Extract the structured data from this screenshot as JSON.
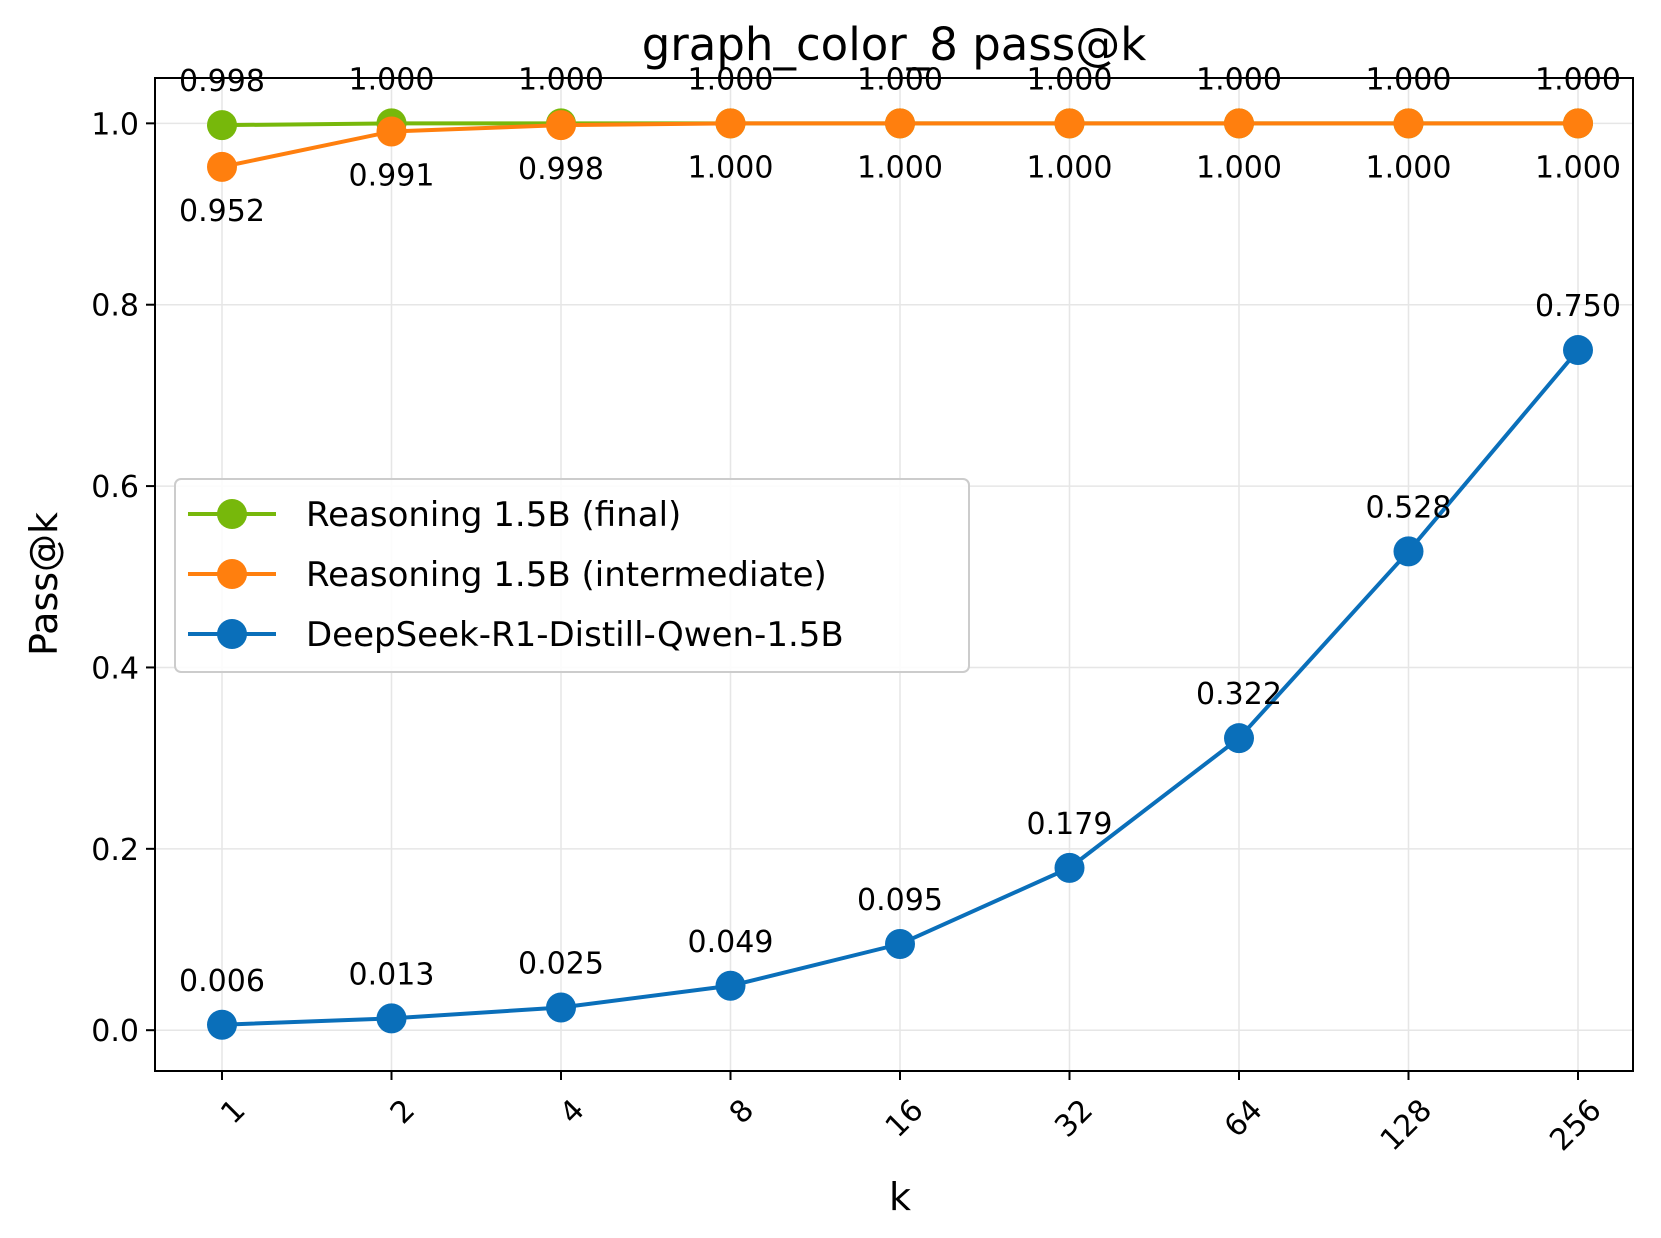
{
  "chart_data": {
    "type": "line",
    "title": "graph_color_8 pass@k",
    "xlabel": "k",
    "ylabel": "Pass@k",
    "categories": [
      "1",
      "2",
      "4",
      "8",
      "16",
      "32",
      "64",
      "128",
      "256"
    ],
    "ylim": [
      -0.045,
      1.05
    ],
    "yticks": [
      "0.0",
      "0.2",
      "0.4",
      "0.6",
      "0.8",
      "1.0"
    ],
    "ytick_values": [
      0.0,
      0.2,
      0.4,
      0.6,
      0.8,
      1.0
    ],
    "grid": true,
    "legend_position": "center-left",
    "series": [
      {
        "name": "Reasoning 1.5B (final)",
        "color": "#77b80b",
        "values": [
          0.998,
          1.0,
          1.0,
          1.0,
          1.0,
          1.0,
          1.0,
          1.0,
          1.0
        ],
        "labels": [
          "0.998",
          "1.000",
          "1.000",
          "1.000",
          "1.000",
          "1.000",
          "1.000",
          "1.000",
          "1.000"
        ],
        "label_side": "above"
      },
      {
        "name": "Reasoning 1.5B (intermediate)",
        "color": "#ff7f0e",
        "values": [
          0.952,
          0.991,
          0.998,
          1.0,
          1.0,
          1.0,
          1.0,
          1.0,
          1.0
        ],
        "labels": [
          "0.952",
          "0.991",
          "0.998",
          "1.000",
          "1.000",
          "1.000",
          "1.000",
          "1.000",
          "1.000"
        ],
        "label_side": "below"
      },
      {
        "name": "DeepSeek-R1-Distill-Qwen-1.5B",
        "color": "#0a6fba",
        "values": [
          0.006,
          0.013,
          0.025,
          0.049,
          0.095,
          0.179,
          0.322,
          0.528,
          0.75
        ],
        "labels": [
          "0.006",
          "0.013",
          "0.025",
          "0.049",
          "0.095",
          "0.179",
          "0.322",
          "0.528",
          "0.750"
        ],
        "label_side": "above"
      }
    ]
  }
}
